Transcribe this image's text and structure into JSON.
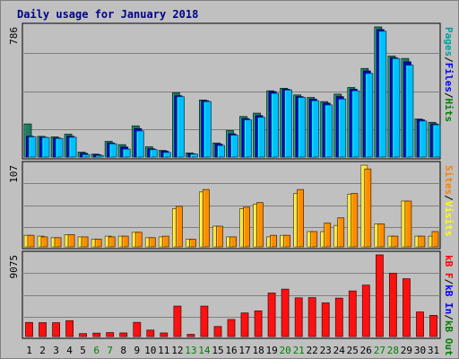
{
  "chart_data": {
    "type": "bar",
    "title": "Daily usage for January 2018",
    "categories": [
      "1",
      "2",
      "3",
      "4",
      "5",
      "6",
      "7",
      "8",
      "9",
      "10",
      "11",
      "12",
      "13",
      "14",
      "15",
      "16",
      "17",
      "18",
      "19",
      "20",
      "21",
      "22",
      "23",
      "24",
      "25",
      "26",
      "27",
      "28",
      "29",
      "30",
      "31"
    ],
    "weekend_days": [
      "6",
      "7",
      "13",
      "14",
      "20",
      "21",
      "27",
      "28"
    ],
    "panels": [
      {
        "name": "requests",
        "ymax_label": "786",
        "ymax": 786,
        "legend": [
          "Pages",
          "/",
          "Files",
          "/",
          "Hits"
        ],
        "legend_colors": [
          "#00a0a0",
          "#000000",
          "#0000ff",
          "#000000",
          "#008000"
        ],
        "series": [
          {
            "name": "Hits",
            "color": "#1e7b5d",
            "values": [
              200,
              125,
              122,
              138,
              30,
              18,
              95,
              75,
              188,
              62,
              40,
              388,
              25,
              345,
              85,
              160,
              245,
              265,
              400,
              415,
              375,
              360,
              335,
              380,
              420,
              535,
              786,
              610,
              595,
              230,
              210
            ]
          },
          {
            "name": "Files",
            "color": "#0000cd",
            "values": [
              125,
              120,
              115,
              125,
              22,
              14,
              85,
              60,
              172,
              50,
              35,
              370,
              20,
              340,
              78,
              140,
              232,
              250,
              395,
              410,
              365,
              350,
              325,
              365,
              410,
              520,
              770,
              600,
              575,
              225,
              200
            ]
          },
          {
            "name": "Pages",
            "color": "#00bfff",
            "values": [
              122,
              118,
              112,
              120,
              15,
              10,
              80,
              48,
              158,
              45,
              28,
              365,
              18,
              335,
              70,
              132,
              225,
              240,
              385,
              405,
              360,
              340,
              315,
              350,
              400,
              505,
              760,
              595,
              555,
              218,
              195
            ]
          }
        ]
      },
      {
        "name": "visits",
        "ymax_label": "107",
        "ymax": 107,
        "legend": [
          "Sites",
          "/",
          "Visits"
        ],
        "legend_colors": [
          "#ff8000",
          "#000000",
          "#ffff00"
        ],
        "series": [
          {
            "name": "Visits",
            "color": "#ffe040",
            "values": [
              15,
              14,
              12,
              16,
              13,
              10,
              14,
              14,
              19,
              12,
              13,
              50,
              10,
              72,
              27,
              13,
              50,
              56,
              13,
              15,
              70,
              20,
              20,
              28,
              69,
              107,
              30,
              14,
              60,
              14,
              14
            ]
          },
          {
            "name": "Sites",
            "color": "#ff8c00",
            "values": [
              15,
              13,
              12,
              16,
              13,
              10,
              13,
              14,
              19,
              12,
              14,
              53,
              10,
              75,
              27,
              13,
              52,
              58,
              15,
              15,
              75,
              20,
              31,
              38,
              70,
              102,
              30,
              14,
              60,
              14,
              20
            ]
          }
        ]
      },
      {
        "name": "volume",
        "ymax_label": "9075",
        "ymax": 9075,
        "legend": [
          "kB F",
          "/",
          "kB In",
          "/",
          "kB Out"
        ],
        "legend_colors": [
          "#ff0000",
          "#000000",
          "#0000ff",
          "#000000",
          "#008000"
        ],
        "series": [
          {
            "name": "kB F",
            "color": "#ff1010",
            "values": [
              1570,
              1550,
              1540,
              1770,
              330,
              380,
              440,
              400,
              1580,
              720,
              400,
              3380,
              240,
              3380,
              1120,
              1890,
              2620,
              2850,
              4840,
              5270,
              4300,
              4330,
              3740,
              4270,
              5070,
              5710,
              9075,
              7040,
              6420,
              2730,
              2350
            ]
          }
        ]
      }
    ]
  }
}
